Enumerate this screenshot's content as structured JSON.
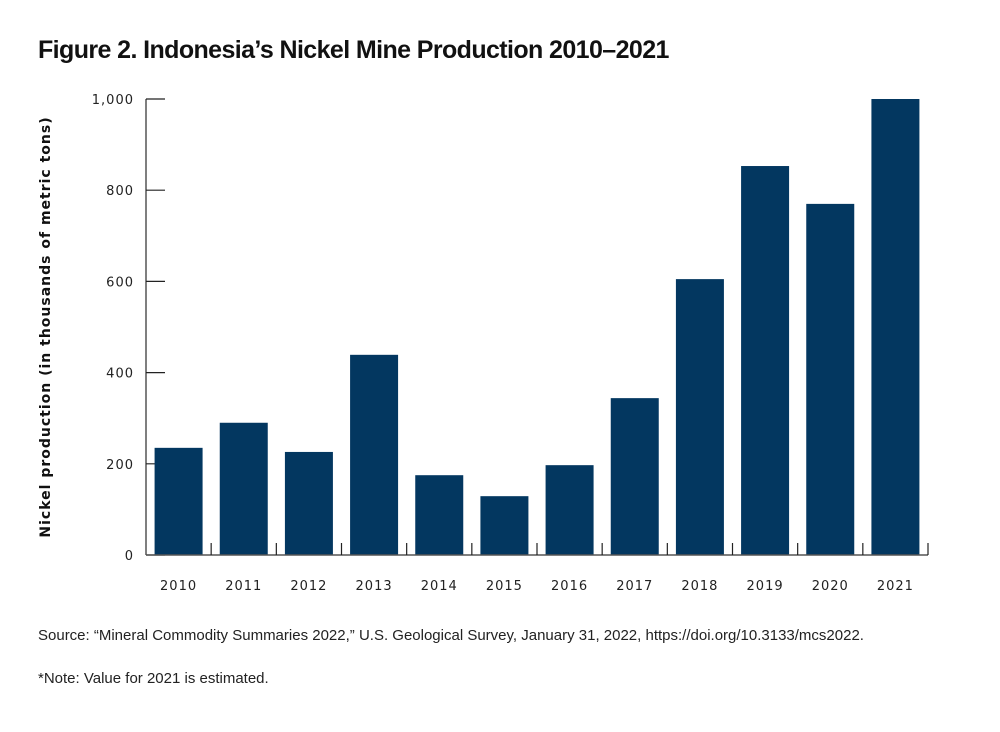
{
  "colors": {
    "bar": "#033760",
    "axis": "#555555",
    "tick": "#222222"
  },
  "chart_data": {
    "type": "bar",
    "title": "Figure 2. Indonesia’s Nickel Mine Production 2010–2021",
    "xlabel": "",
    "ylabel": "Nickel production (in thousands of metric tons)",
    "categories": [
      "2010",
      "2011",
      "2012",
      "2013",
      "2014",
      "2015",
      "2016",
      "2017",
      "2018",
      "2019",
      "2020",
      "2021"
    ],
    "values": [
      235,
      290,
      226,
      439,
      175,
      129,
      197,
      344,
      605,
      853,
      770,
      1000
    ],
    "ylim": [
      0,
      1000
    ],
    "yticks": [
      0,
      200,
      400,
      600,
      800,
      1000
    ],
    "ytick_labels": [
      "0",
      "200",
      "400",
      "600",
      "800",
      "1,000"
    ],
    "grid": false,
    "legend": "none"
  },
  "footer": {
    "source": "Source: “Mineral Commodity Summaries 2022,” U.S. Geological Survey, January 31, 2022, https://doi.org/10.3133/mcs2022.",
    "note": "*Note: Value for 2021 is estimated."
  }
}
